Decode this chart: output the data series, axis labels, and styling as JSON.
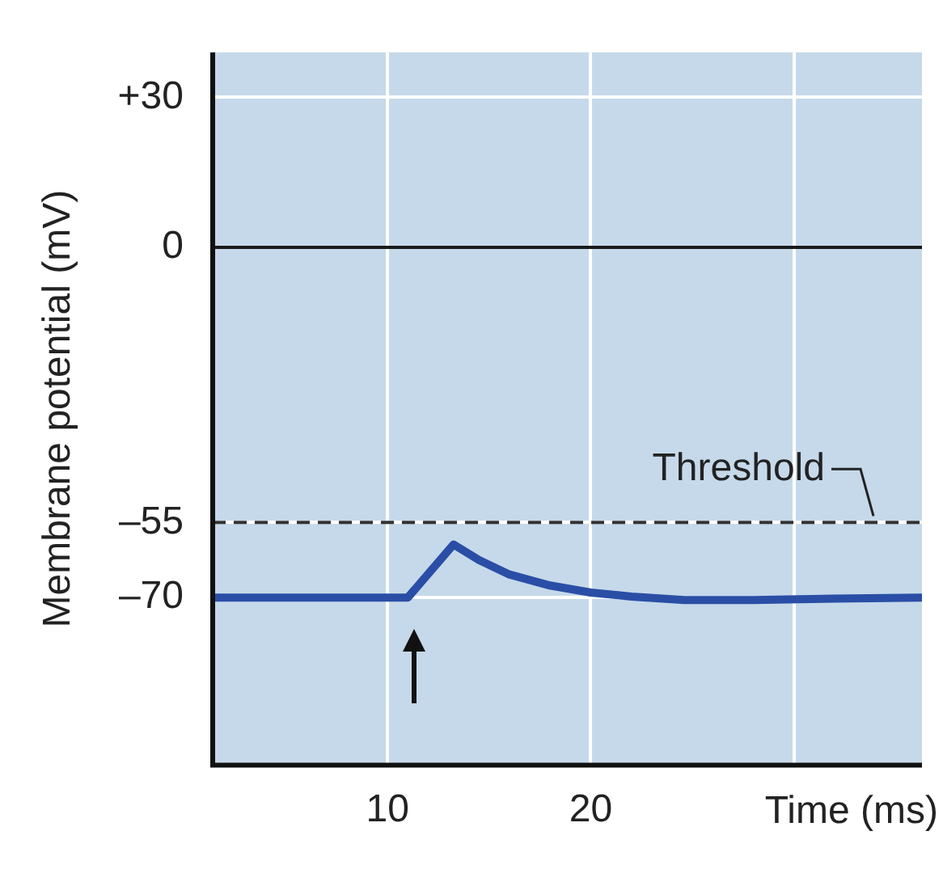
{
  "chart_data": {
    "type": "line",
    "xlabel": "Time (ms)",
    "ylabel": "Membrane potential (mV)",
    "x": [
      1.4,
      5,
      11.0,
      13.25,
      14.5,
      16,
      18,
      20,
      22,
      24.6,
      28,
      32,
      36.3
    ],
    "series": [
      {
        "color": "#2a4ea6",
        "values": [
          -70,
          -70,
          -70,
          -59.4,
          -62.5,
          -65.4,
          -67.6,
          -69,
          -69.8,
          -70.5,
          -70.5,
          -70.2,
          -70
        ]
      }
    ],
    "xlim": [
      1.4,
      36.3
    ],
    "xticks": [
      10,
      20,
      {
        "value": 30,
        "label": null
      }
    ],
    "ylim": [
      -103.5,
      39
    ],
    "yticks": [
      {
        "value": 30,
        "label": "+30"
      },
      0,
      {
        "value": -55,
        "label": "–55"
      },
      {
        "value": -70,
        "label": "–70"
      }
    ],
    "grid": true,
    "marker": "none",
    "line_style": "solid",
    "legend": false,
    "ref_lines": [
      {
        "axis": "y",
        "value": 0,
        "color": "#1a1a1a",
        "line_style": "solid"
      },
      {
        "axis": "y",
        "value": -55,
        "label": "Threshold",
        "color": "#333333",
        "line_style": "dashed"
      }
    ]
  }
}
